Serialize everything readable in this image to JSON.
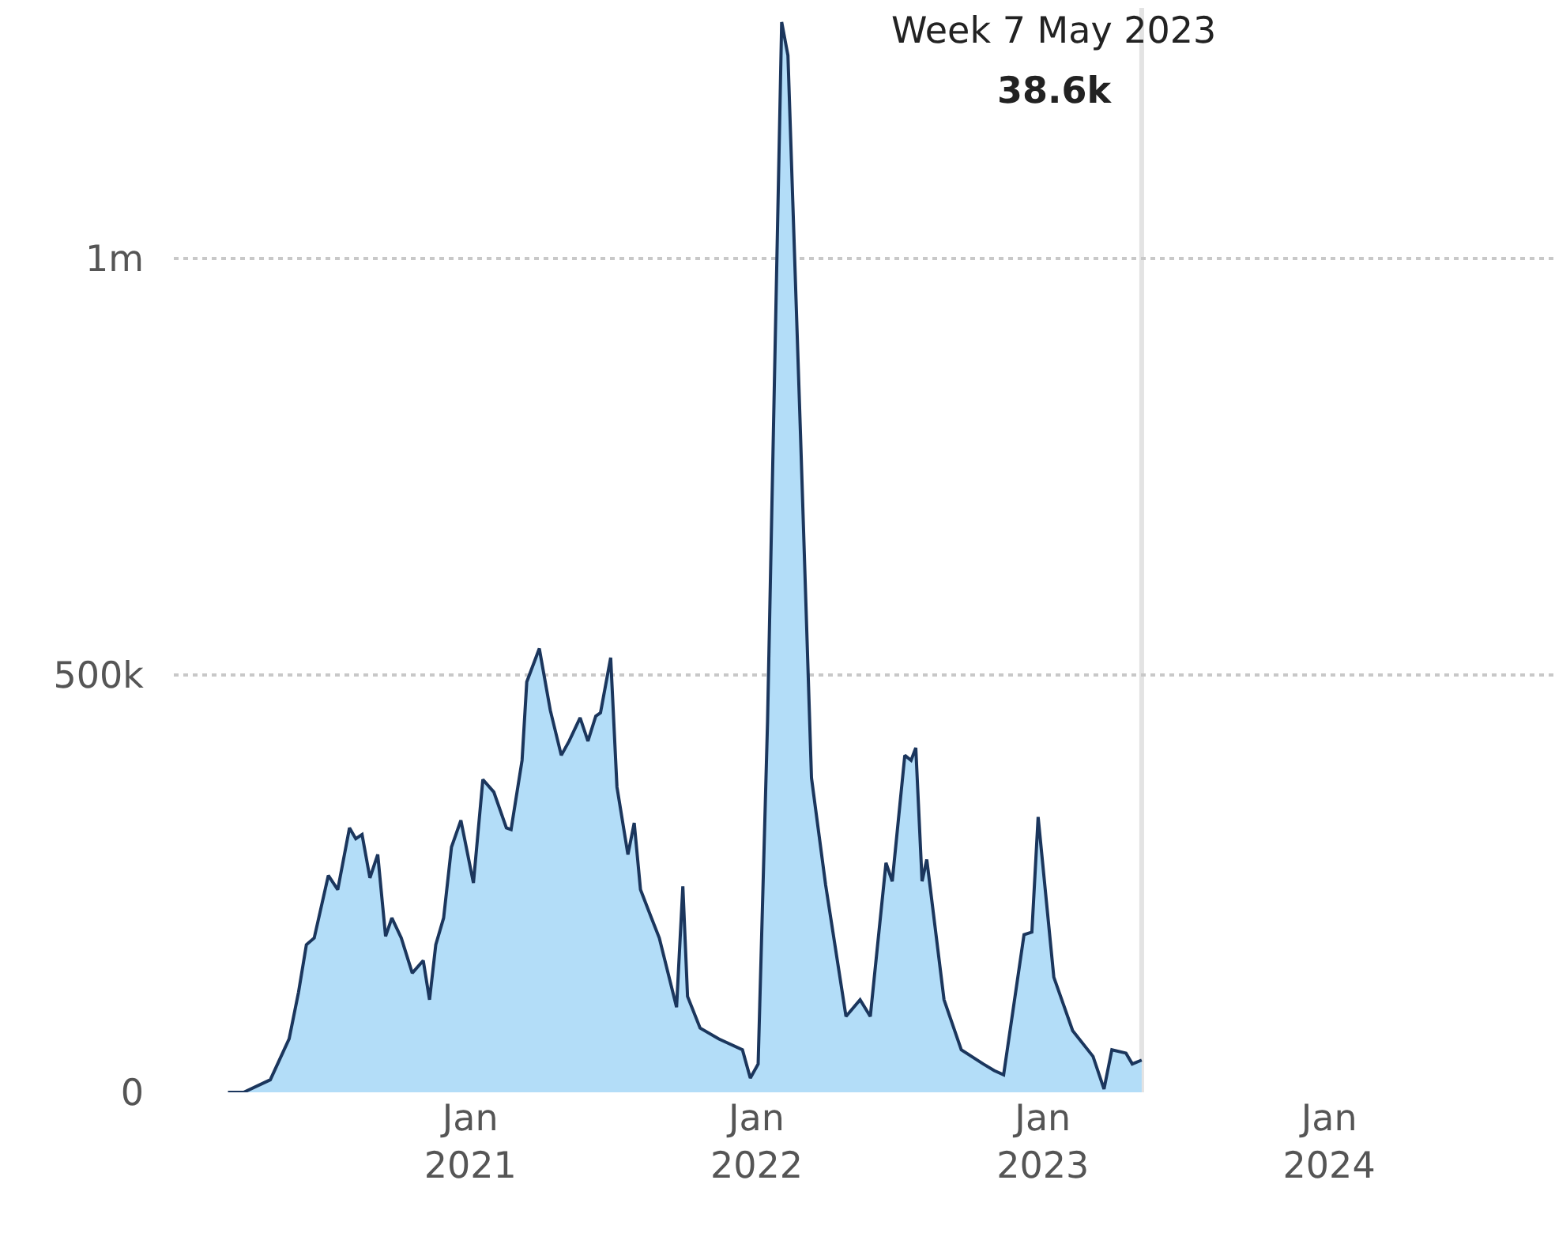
{
  "chart_data": {
    "type": "area",
    "x": [
      "2020-02-27",
      "2020-03-18",
      "2020-04-21",
      "2020-05-15",
      "2020-05-27",
      "2020-06-06",
      "2020-06-16",
      "2020-07-04",
      "2020-07-16",
      "2020-07-31",
      "2020-08-08",
      "2020-08-16",
      "2020-08-26",
      "2020-09-05",
      "2020-09-15",
      "2020-09-23",
      "2020-10-05",
      "2020-10-19",
      "2020-11-02",
      "2020-11-10",
      "2020-11-18",
      "2020-11-28",
      "2020-12-08",
      "2020-12-20",
      "2021-01-05",
      "2021-01-17",
      "2021-01-31",
      "2021-02-16",
      "2021-02-22",
      "2021-03-08",
      "2021-03-14",
      "2021-03-30",
      "2021-04-13",
      "2021-04-27",
      "2021-05-07",
      "2021-05-21",
      "2021-05-31",
      "2021-06-10",
      "2021-06-16",
      "2021-06-29",
      "2021-07-07",
      "2021-07-21",
      "2021-07-29",
      "2021-08-06",
      "2021-08-20",
      "2021-08-30",
      "2021-09-21",
      "2021-09-29",
      "2021-10-05",
      "2021-10-21",
      "2021-11-14",
      "2021-12-14",
      "2021-12-24",
      "2022-01-03",
      "2022-01-15",
      "2022-02-02",
      "2022-02-10",
      "2022-02-26",
      "2022-03-12",
      "2022-03-30",
      "2022-04-25",
      "2022-05-13",
      "2022-05-26",
      "2022-06-15",
      "2022-06-23",
      "2022-07-09",
      "2022-07-17",
      "2022-07-23",
      "2022-07-31",
      "2022-08-06",
      "2022-08-28",
      "2022-09-19",
      "2022-10-17",
      "2022-10-31",
      "2022-11-12",
      "2022-12-08",
      "2022-12-18",
      "2022-12-26",
      "2023-01-15",
      "2023-02-08",
      "2023-03-06",
      "2023-03-20",
      "2023-03-30",
      "2023-04-17",
      "2023-04-25",
      "2023-05-07"
    ],
    "series": [
      {
        "color": "#b3ddf8",
        "values": [
          0,
          0,
          15000,
          64000,
          120000,
          177000,
          185000,
          260000,
          243000,
          317000,
          304000,
          309000,
          257000,
          285000,
          187000,
          209000,
          185000,
          143000,
          158000,
          111000,
          177000,
          209000,
          294000,
          326000,
          251000,
          375000,
          360000,
          317000,
          315000,
          398000,
          492000,
          532000,
          458000,
          404000,
          421000,
          449000,
          421000,
          451000,
          455000,
          521000,
          366000,
          285000,
          323000,
          243000,
          209000,
          185000,
          102000,
          247000,
          115000,
          77000,
          64000,
          51000,
          17000,
          34000,
          445000,
          1283000,
          1243000,
          789000,
          377000,
          249000,
          91000,
          111000,
          91000,
          275000,
          253000,
          404000,
          398000,
          413000,
          253000,
          279000,
          111000,
          51000,
          34000,
          26000,
          21000,
          189000,
          192000,
          330000,
          138000,
          74000,
          43000,
          4000,
          51000,
          47000,
          34000,
          38600
        ]
      }
    ],
    "xlim": [
      "2019-12-20",
      "2024-10-15"
    ],
    "xticks": [
      {
        "value": "2021-01-01",
        "label": "Jan\n2021"
      },
      {
        "value": "2022-01-01",
        "label": "Jan\n2022"
      },
      {
        "value": "2023-01-01",
        "label": "Jan\n2023"
      },
      {
        "value": "2024-01-01",
        "label": "Jan\n2024"
      }
    ],
    "ylim": [
      0,
      1300000
    ],
    "yticks": [
      {
        "value": 0,
        "label": "0"
      },
      {
        "value": 500000,
        "label": "500k"
      },
      {
        "value": 1000000,
        "label": "1m"
      }
    ],
    "grid": "y",
    "ref_lines": [
      {
        "axis": "x",
        "value": "2023-05-07",
        "color": "#e3e3e3"
      }
    ],
    "annotations": [
      "Week 7 May 2023",
      "38.6k"
    ]
  }
}
